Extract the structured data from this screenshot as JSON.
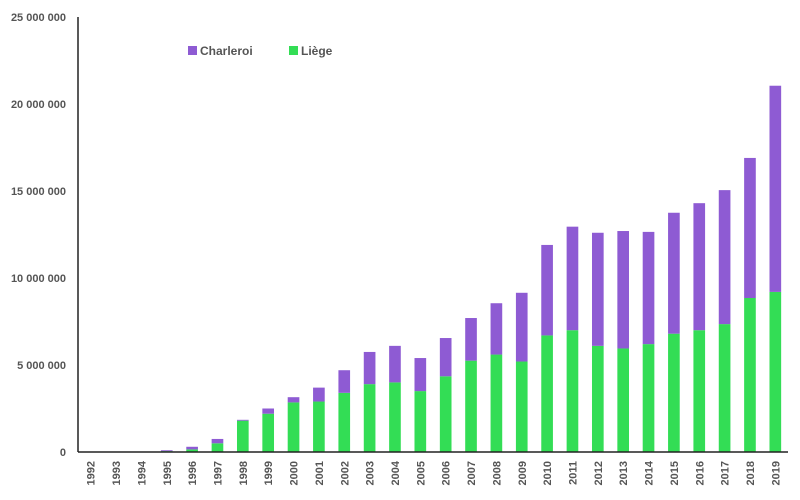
{
  "chart_data": {
    "type": "bar",
    "stacked": true,
    "categories": [
      "1992",
      "1993",
      "1994",
      "1995",
      "1996",
      "1997",
      "1998",
      "1999",
      "2000",
      "2001",
      "2002",
      "2003",
      "2004",
      "2005",
      "2006",
      "2007",
      "2008",
      "2009",
      "2010",
      "2011",
      "2012",
      "2013",
      "2014",
      "2015",
      "2016",
      "2017",
      "2018",
      "2019"
    ],
    "series": [
      {
        "name": "Liège",
        "color": "#33dd55",
        "values": [
          0,
          0,
          0,
          50000,
          150000,
          500000,
          1800000,
          2200000,
          2850000,
          2900000,
          3400000,
          3900000,
          4000000,
          3500000,
          4350000,
          5250000,
          5600000,
          5200000,
          6700000,
          7000000,
          6100000,
          5950000,
          6200000,
          6800000,
          7000000,
          7350000,
          8850000,
          9200000
        ]
      },
      {
        "name": "Charleroi",
        "color": "#8e5bd3",
        "values": [
          0,
          0,
          0,
          50000,
          150000,
          250000,
          50000,
          300000,
          300000,
          800000,
          1300000,
          1850000,
          2100000,
          1900000,
          2200000,
          2450000,
          2950000,
          3950000,
          5200000,
          5950000,
          6500000,
          6750000,
          6450000,
          6950000,
          7300000,
          7700000,
          8050000,
          11850000
        ]
      }
    ],
    "yticks": [
      "0",
      "5 000 000",
      "10 000 000",
      "15 000 000",
      "20 000 000",
      "25 000 000"
    ],
    "ytick_values": [
      0,
      5000000,
      10000000,
      15000000,
      20000000,
      25000000
    ],
    "ylim": [
      0,
      25000000
    ],
    "legend": {
      "position": "top-left",
      "entries": [
        "Charleroi",
        "Liège"
      ]
    },
    "grid": false,
    "title": "",
    "xlabel": "",
    "ylabel": ""
  }
}
